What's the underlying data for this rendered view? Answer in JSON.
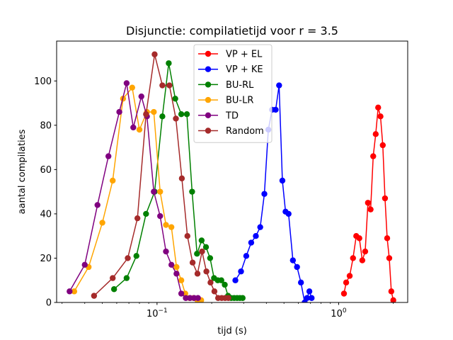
{
  "chart_data": {
    "type": "line",
    "title": "Disjunctie: compilatietijd voor r = 3.5",
    "xlabel": "tijd (s)",
    "ylabel": "aantal compilaties",
    "xscale": "log",
    "xlim": [
      0.028,
      2.4
    ],
    "ylim": [
      0,
      118
    ],
    "xticks": [
      {
        "value": 0.1,
        "base": "10",
        "exp": "−1"
      },
      {
        "value": 1,
        "base": "10",
        "exp": "0"
      }
    ],
    "yticks": [
      0,
      20,
      40,
      60,
      80,
      100
    ],
    "grid": false,
    "legend_position": "top-center",
    "series": [
      {
        "name": "VP + EL",
        "color": "#ff0000",
        "x": [
          1.07,
          1.1,
          1.15,
          1.2,
          1.25,
          1.3,
          1.35,
          1.4,
          1.45,
          1.5,
          1.55,
          1.6,
          1.65,
          1.7,
          1.75,
          1.8,
          1.85,
          1.9,
          1.95,
          2.0
        ],
        "y": [
          4,
          9,
          12,
          20,
          30,
          29,
          19,
          23,
          45,
          42,
          66,
          76,
          88,
          84,
          71,
          47,
          29,
          20,
          5,
          1
        ]
      },
      {
        "name": "VP + KE",
        "color": "#0000ff",
        "x": [
          0.27,
          0.29,
          0.31,
          0.33,
          0.35,
          0.37,
          0.39,
          0.41,
          0.43,
          0.45,
          0.47,
          0.49,
          0.51,
          0.53,
          0.56,
          0.59,
          0.62,
          0.65,
          0.67,
          0.69,
          0.71
        ],
        "y": [
          10,
          14,
          21,
          27,
          30,
          34,
          49,
          78,
          87,
          87,
          98,
          55,
          41,
          40,
          19,
          16,
          9,
          0,
          2,
          5,
          2
        ]
      },
      {
        "name": "BU-RL",
        "color": "#008000",
        "x": [
          0.058,
          0.068,
          0.077,
          0.087,
          0.097,
          0.107,
          0.116,
          0.126,
          0.136,
          0.146,
          0.156,
          0.166,
          0.176,
          0.186,
          0.196,
          0.206,
          0.216,
          0.226,
          0.236,
          0.246,
          0.256,
          0.266,
          0.276,
          0.286,
          0.296
        ],
        "y": [
          6,
          11,
          21,
          40,
          50,
          84,
          108,
          92,
          85,
          85,
          50,
          22,
          28,
          25,
          20,
          11,
          10,
          10,
          8,
          3,
          2,
          2,
          2,
          2,
          2
        ]
      },
      {
        "name": "BU-LR",
        "color": "#ffa500",
        "x": [
          0.035,
          0.042,
          0.05,
          0.057,
          0.065,
          0.073,
          0.08,
          0.088,
          0.096,
          0.104,
          0.112,
          0.12,
          0.128,
          0.136,
          0.143,
          0.151,
          0.159,
          0.167,
          0.175
        ],
        "y": [
          5,
          16,
          36,
          55,
          92,
          97,
          78,
          86,
          86,
          50,
          35,
          34,
          16,
          10,
          4,
          2,
          2,
          1,
          1
        ]
      },
      {
        "name": "TD",
        "color": "#800080",
        "x": [
          0.033,
          0.04,
          0.047,
          0.054,
          0.062,
          0.068,
          0.074,
          0.082,
          0.088,
          0.096,
          0.104,
          0.112,
          0.12,
          0.128,
          0.136,
          0.144,
          0.152,
          0.16,
          0.168
        ],
        "y": [
          5,
          17,
          44,
          66,
          86,
          99,
          79,
          93,
          84,
          50,
          39,
          23,
          17,
          13,
          4,
          2,
          2,
          2,
          2
        ]
      },
      {
        "name": "Random",
        "color": "#a52a2a",
        "x": [
          0.045,
          0.057,
          0.069,
          0.078,
          0.087,
          0.097,
          0.107,
          0.117,
          0.127,
          0.137,
          0.147,
          0.157,
          0.167,
          0.177,
          0.187,
          0.197,
          0.207,
          0.217,
          0.227,
          0.237,
          0.247
        ],
        "y": [
          3,
          11,
          20,
          38,
          85,
          112,
          98,
          98,
          83,
          56,
          30,
          18,
          13,
          23,
          14,
          9,
          5,
          2,
          2,
          2,
          2
        ]
      }
    ]
  }
}
